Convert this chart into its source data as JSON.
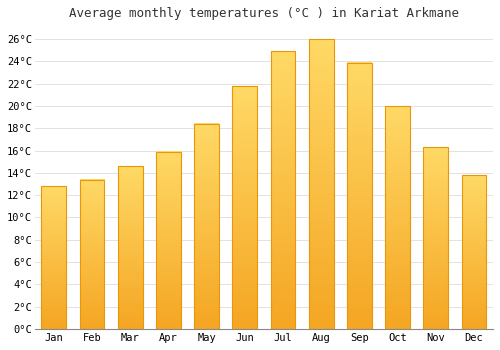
{
  "title": "Average monthly temperatures (°C ) in Kariat Arkmane",
  "months": [
    "Jan",
    "Feb",
    "Mar",
    "Apr",
    "May",
    "Jun",
    "Jul",
    "Aug",
    "Sep",
    "Oct",
    "Nov",
    "Dec"
  ],
  "values": [
    12.8,
    13.4,
    14.6,
    15.9,
    18.4,
    21.8,
    24.9,
    26.0,
    23.9,
    20.0,
    16.3,
    13.8
  ],
  "bar_color_bottom": "#F5A623",
  "bar_color_top": "#FFD966",
  "bar_edge_color": "#E8960A",
  "background_color": "#FFFFFF",
  "plot_bg_color": "#FFFFFF",
  "grid_color": "#DDDDDD",
  "title_fontsize": 9,
  "tick_fontsize": 7.5,
  "ylim": [
    0,
    27
  ],
  "yticks": [
    0,
    2,
    4,
    6,
    8,
    10,
    12,
    14,
    16,
    18,
    20,
    22,
    24,
    26
  ]
}
